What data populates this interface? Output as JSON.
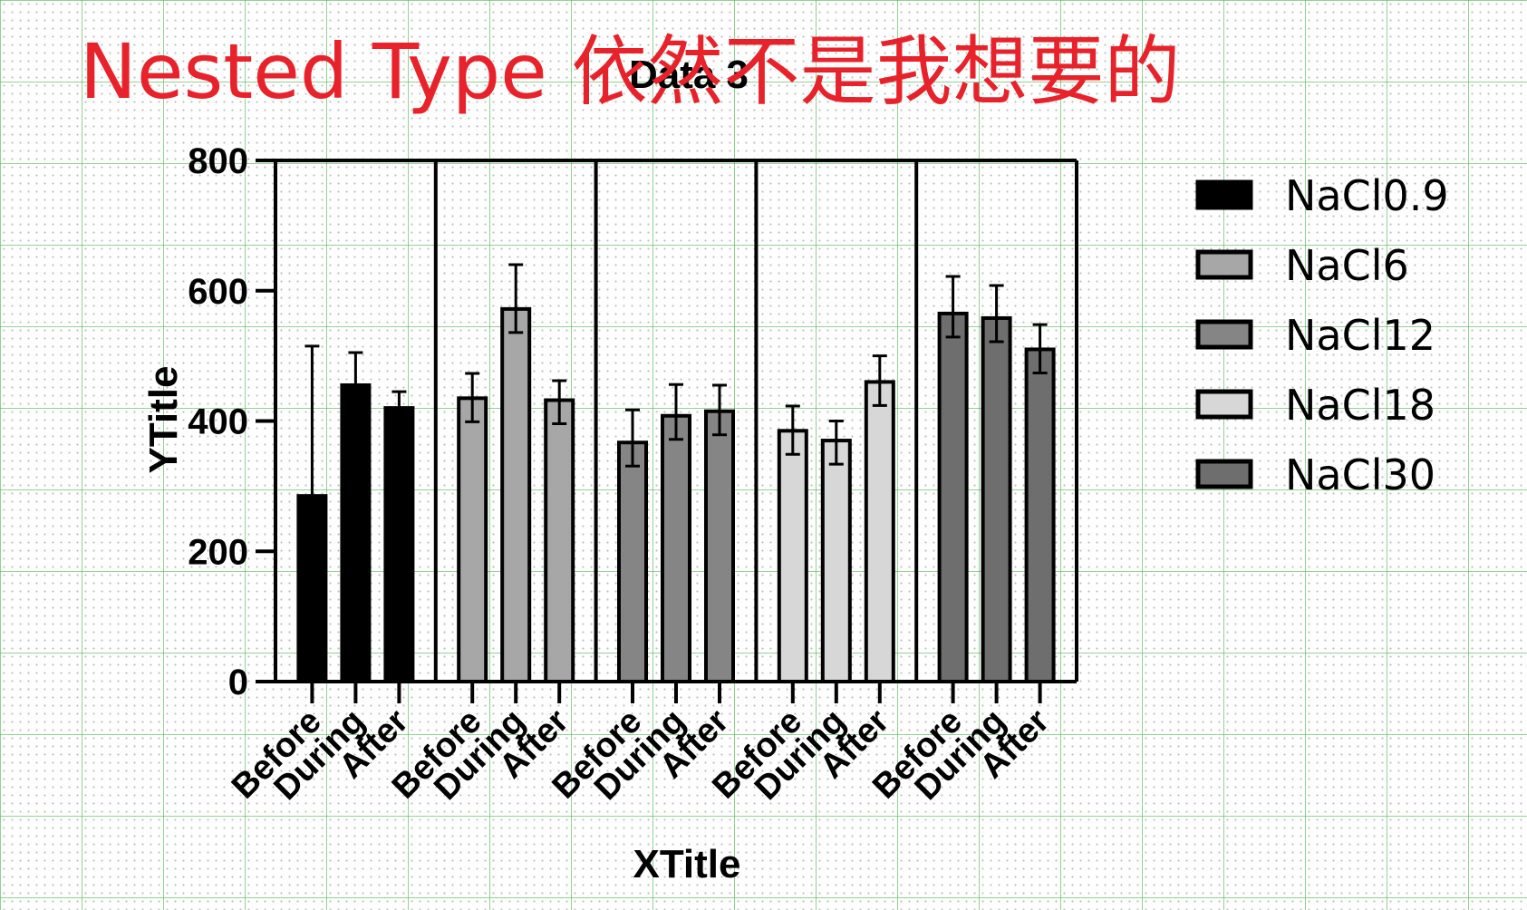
{
  "overlay_note": "Nested Type 依然不是我想要的",
  "chart_data": {
    "type": "bar",
    "title": "Data 3",
    "xlabel": "XTitle",
    "ylabel": "YTitle",
    "ylim": [
      0,
      800
    ],
    "yticks": [
      "0",
      "200",
      "400",
      "600",
      "800"
    ],
    "categories": [
      "Before",
      "During",
      "After"
    ],
    "series": [
      {
        "name": "NaCl0.9",
        "color": "#000000",
        "values": [
          285,
          455,
          420
        ],
        "errors": [
          230,
          50,
          25
        ]
      },
      {
        "name": "NaCl6",
        "color": "#a7a7a7",
        "values": [
          435,
          572,
          432
        ],
        "errors": [
          38,
          68,
          30
        ]
      },
      {
        "name": "NaCl12",
        "color": "#858585",
        "values": [
          367,
          408,
          415
        ],
        "errors": [
          50,
          48,
          40
        ]
      },
      {
        "name": "NaCl18",
        "color": "#d7d7d7",
        "values": [
          385,
          370,
          460
        ],
        "errors": [
          38,
          30,
          40
        ]
      },
      {
        "name": "NaCl30",
        "color": "#6e6e6e",
        "values": [
          565,
          558,
          510
        ],
        "errors": [
          57,
          50,
          38
        ]
      }
    ],
    "grid": false,
    "legend_position": "right"
  }
}
